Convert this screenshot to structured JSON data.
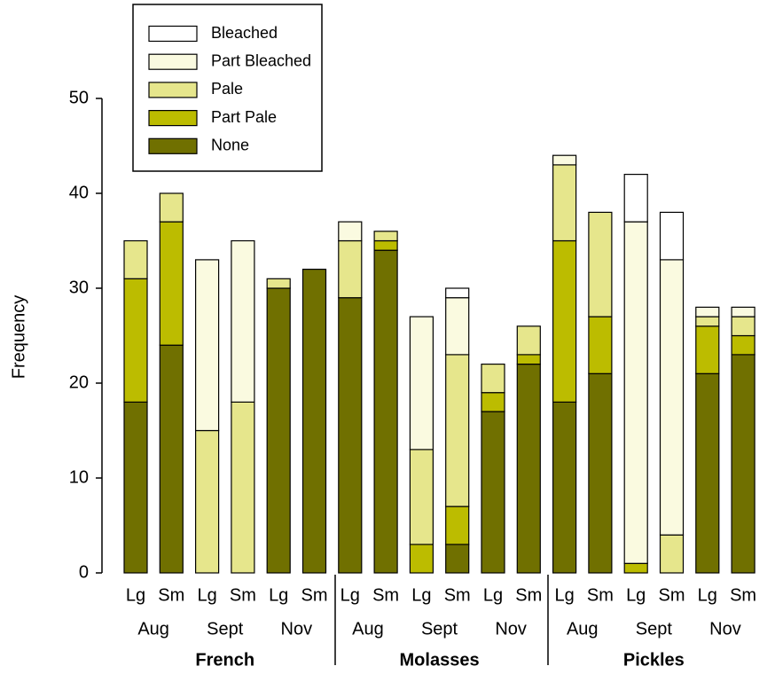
{
  "chart_data": {
    "type": "stacked_bar",
    "y_label": "Frequency",
    "categories": [
      "Lg",
      "Sm",
      "Lg",
      "Sm",
      "Lg",
      "Sm",
      "Lg",
      "Sm",
      "Lg",
      "Sm",
      "Lg",
      "Sm",
      "Lg",
      "Sm",
      "Lg",
      "Sm",
      "Lg",
      "Sm"
    ],
    "months": [
      "Aug",
      "Sept",
      "Nov",
      "Aug",
      "Sept",
      "Nov",
      "Aug",
      "Sept",
      "Nov"
    ],
    "groups": [
      "French",
      "Molasses",
      "Pickles"
    ],
    "series": [
      {
        "name": "None",
        "color": "#707000",
        "values": [
          18,
          24,
          0,
          0,
          30,
          32,
          29,
          34,
          0,
          3,
          17,
          22,
          18,
          21,
          0,
          0,
          21,
          23
        ]
      },
      {
        "name": "Part Pale",
        "color": "#bcbc00",
        "values": [
          13,
          13,
          0,
          0,
          0,
          0,
          0,
          1,
          3,
          4,
          2,
          1,
          17,
          6,
          1,
          0,
          5,
          2
        ]
      },
      {
        "name": "Pale",
        "color": "#e6e68c",
        "values": [
          4,
          3,
          15,
          18,
          1,
          0,
          6,
          1,
          10,
          16,
          3,
          3,
          8,
          11,
          0,
          4,
          1,
          2
        ]
      },
      {
        "name": "Part Bleached",
        "color": "#fafae0",
        "values": [
          0,
          0,
          18,
          17,
          0,
          0,
          2,
          0,
          14,
          6,
          0,
          0,
          1,
          0,
          36,
          29,
          1,
          1
        ]
      },
      {
        "name": "Bleached",
        "color": "#ffffff",
        "values": [
          0,
          0,
          0,
          0,
          0,
          0,
          0,
          0,
          0,
          1,
          0,
          0,
          0,
          0,
          5,
          5,
          0,
          0
        ]
      }
    ],
    "ylim": [
      0,
      50
    ],
    "yticks": [
      0,
      10,
      20,
      30,
      40,
      50
    ]
  }
}
